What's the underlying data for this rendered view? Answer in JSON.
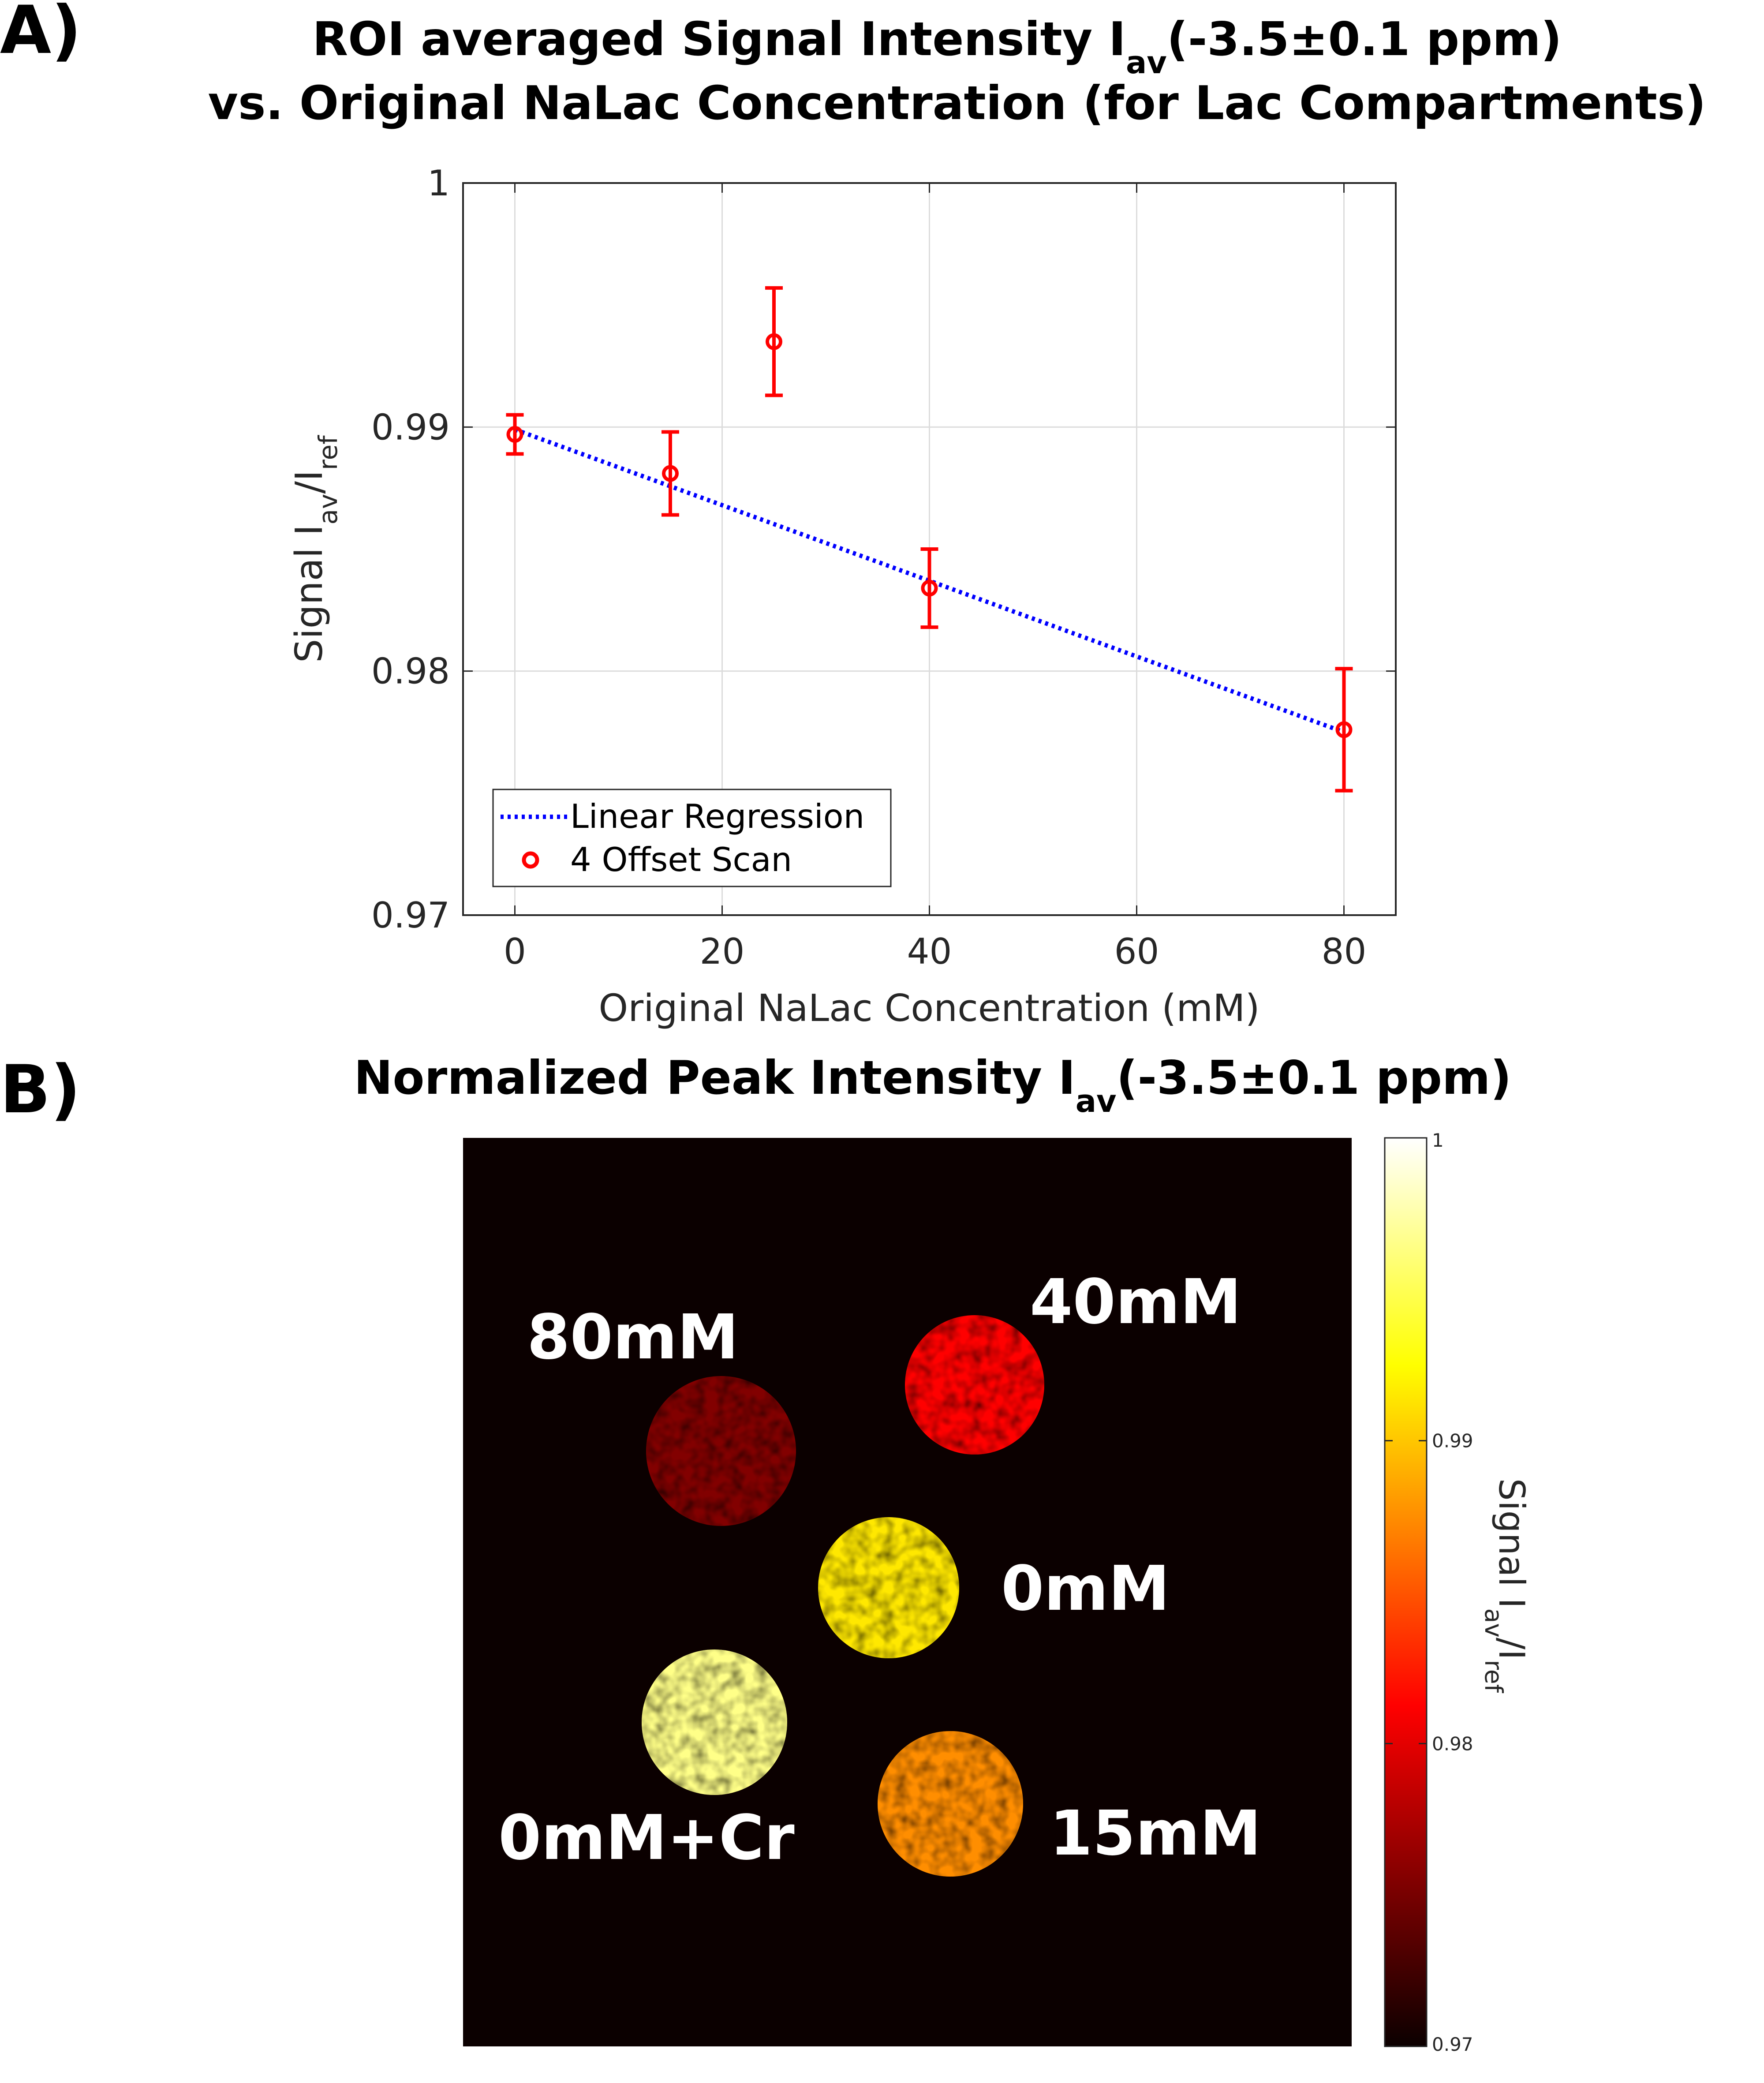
{
  "panel_a": {
    "label": "A)",
    "title_line1": {
      "pre": "ROI averaged Signal Intensity I",
      "sub": "av",
      "post": "(-3.5±0.1 ppm)"
    },
    "title_line2": "vs. Original NaLac Concentration (for Lac Compartments)"
  },
  "panel_b": {
    "label": "B)",
    "title": {
      "pre": "Normalized Peak Intensity I",
      "sub": "av",
      "post": "(-3.5±0.1 ppm)"
    }
  },
  "chart_data": [
    {
      "type": "scatter",
      "xlabel": "Original NaLac Concentration (mM)",
      "ylabel": {
        "pre": "Signal I",
        "sub1": "av",
        "mid": "/I",
        "sub2": "ref"
      },
      "xlim": [
        -5,
        85
      ],
      "ylim": [
        0.97,
        1.0
      ],
      "x_ticks": [
        0,
        20,
        40,
        60,
        80
      ],
      "y_ticks": [
        0.97,
        0.98,
        0.99,
        1
      ],
      "y_tick_labels": [
        "0.97",
        "0.98",
        "0.99",
        "1"
      ],
      "grid": true,
      "legend_position": "bottom-left",
      "series": [
        {
          "name": "4 Offset Scan",
          "kind": "errorbar",
          "color": "#ff0000",
          "x": [
            0,
            15,
            25,
            40,
            80
          ],
          "y": [
            0.9897,
            0.9881,
            0.9935,
            0.9834,
            0.9776
          ],
          "err": [
            0.0008,
            0.0017,
            0.0022,
            0.0016,
            0.0025
          ]
        },
        {
          "name": "Linear Regression",
          "kind": "line",
          "style": "dotted",
          "color": "#0000ff",
          "x": [
            0,
            80
          ],
          "y": [
            0.9899,
            0.9775
          ]
        }
      ]
    },
    {
      "type": "heatmap",
      "colormap": "hot",
      "background_color": "#0b0000",
      "colorbar": {
        "range": [
          0.97,
          1.0
        ],
        "ticks": [
          "1",
          "0.99",
          "0.98",
          "0.97"
        ],
        "label": {
          "pre": "Signal I",
          "sub1": "av",
          "mid": "/I",
          "sub2": "ref"
        }
      },
      "compartments": [
        {
          "label": "80mM",
          "concentration_mM": 80,
          "signal": 0.9755
        },
        {
          "label": "40mM",
          "concentration_mM": 40,
          "signal": 0.9815
        },
        {
          "label": "0mM",
          "concentration_mM": 0,
          "signal": 0.9915
        },
        {
          "label": "0mM+Cr",
          "concentration_mM": 0,
          "signal": 0.9965
        },
        {
          "label": "15mM",
          "concentration_mM": 15,
          "signal": 0.9875
        }
      ]
    }
  ]
}
